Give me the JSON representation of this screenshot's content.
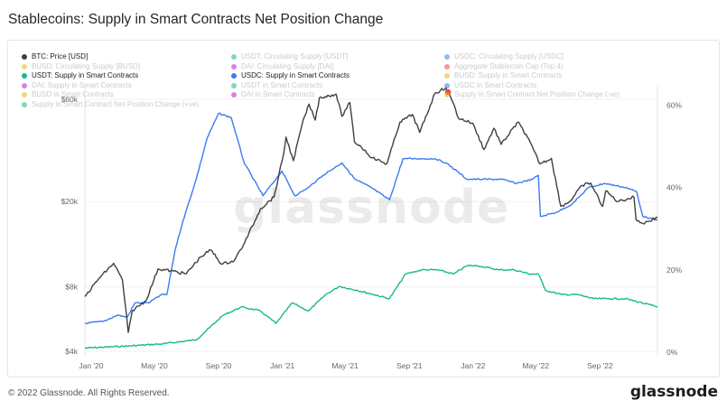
{
  "title": "Stablecoins: Supply in Smart Contracts Net Position Change",
  "footer": "© 2022 Glassnode. All Rights Reserved.",
  "brand": "glassnode",
  "watermark": "glassnode",
  "legend": [
    {
      "label": "BTC: Price [USD]",
      "color": "#404040",
      "active": true
    },
    {
      "label": "USDT: Circulating Supply [USDT]",
      "color": "#16b98b",
      "active": false
    },
    {
      "label": "USDC: Circulating Supply [USDC]",
      "color": "#3d7bf0",
      "active": false
    },
    {
      "label": "BUSD: Circulating Supply [BUSD]",
      "color": "#e3b71a",
      "active": false
    },
    {
      "label": "DAI: Circulating Supply [DAI]",
      "color": "#b61ed0",
      "active": false
    },
    {
      "label": "Aggregate Stablecoin Cap (Top 4)",
      "color": "#f0463c",
      "active": false
    },
    {
      "label": "USDT: Supply in Smart Contracts",
      "color": "#16b98b",
      "active": true
    },
    {
      "label": "USDC: Supply in Smart Contracts",
      "color": "#3d7bf0",
      "active": true
    },
    {
      "label": "BUSD: Supply in Smart Contracts",
      "color": "#e3b71a",
      "active": false
    },
    {
      "label": "DAI: Supply in Smart Contracts",
      "color": "#b61ed0",
      "active": false
    },
    {
      "label": "USDT in Smart Contracts",
      "color": "#16b98b",
      "active": false
    },
    {
      "label": "USDC in Smart Contracts",
      "color": "#3d7bf0",
      "active": false
    },
    {
      "label": "BUSD in Smart Contracts",
      "color": "#e3b71a",
      "active": false
    },
    {
      "label": "DAI in Smart Contracts",
      "color": "#b61ed0",
      "active": false
    },
    {
      "label": "Supply in Smart Contract Net Position Change (-ve)",
      "color": "#e3b71a",
      "active": false
    },
    {
      "label": "Supply in Smart Contract Net Position Change (+ve)",
      "color": "#16b98b",
      "active": false
    }
  ],
  "chart_data": {
    "type": "line",
    "title": "Stablecoins: Supply in Smart Contracts Net Position Change",
    "x_ticks": [
      "Jan '20",
      "May '20",
      "Sep '20",
      "Jan '21",
      "May '21",
      "Sep '21",
      "Jan '22",
      "May '22",
      "Sep '22"
    ],
    "y_left_ticks": [
      "$4k",
      "$8k",
      "$20k",
      "$60k"
    ],
    "y_left_scale": "log",
    "y_right_ticks": [
      "0%",
      "20%",
      "40%",
      "60%"
    ],
    "y_right_range": [
      0,
      68
    ],
    "x_range": [
      "2019-12-20",
      "2022-12-20"
    ],
    "grid": true,
    "series": [
      {
        "name": "BTC: Price [USD]",
        "axis": "left",
        "color": "#404040",
        "x": [
          "2019-12-20",
          "2020-01-15",
          "2020-02-13",
          "2020-03-01",
          "2020-03-12",
          "2020-03-20",
          "2020-04-15",
          "2020-05-08",
          "2020-06-01",
          "2020-07-01",
          "2020-07-28",
          "2020-08-17",
          "2020-09-07",
          "2020-10-01",
          "2020-10-21",
          "2020-11-20",
          "2020-12-16",
          "2021-01-03",
          "2021-01-08",
          "2021-01-22",
          "2021-02-08",
          "2021-02-21",
          "2021-03-05",
          "2021-03-13",
          "2021-04-14",
          "2021-04-25",
          "2021-05-10",
          "2021-05-19",
          "2021-06-01",
          "2021-06-22",
          "2021-07-20",
          "2021-08-14",
          "2021-09-07",
          "2021-09-21",
          "2021-10-20",
          "2021-11-10",
          "2021-11-25",
          "2021-12-04",
          "2021-12-31",
          "2022-01-22",
          "2022-02-10",
          "2022-02-24",
          "2022-03-28",
          "2022-04-15",
          "2022-05-09",
          "2022-05-31",
          "2022-06-18",
          "2022-07-05",
          "2022-07-29",
          "2022-08-14",
          "2022-09-06",
          "2022-09-12",
          "2022-10-05",
          "2022-11-05",
          "2022-11-09",
          "2022-11-22",
          "2022-12-20"
        ],
        "y": [
          7200,
          8700,
          10300,
          8600,
          4900,
          6200,
          6900,
          9700,
          9500,
          9200,
          11000,
          11900,
          10200,
          10600,
          12900,
          18500,
          21000,
          33000,
          40000,
          31000,
          46000,
          57000,
          48000,
          61000,
          63500,
          50000,
          58000,
          38000,
          36000,
          32000,
          30000,
          47000,
          51000,
          42000,
          64000,
          68000,
          57000,
          49000,
          46500,
          35000,
          44000,
          37000,
          47000,
          40000,
          30000,
          31800,
          19000,
          20000,
          23800,
          24400,
          19000,
          22400,
          20000,
          21000,
          16500,
          15800,
          16900
        ]
      },
      {
        "name": "USDC: Supply in Smart Contracts",
        "axis": "right",
        "color": "#3d7bf0",
        "unit": "%",
        "x": [
          "2019-12-20",
          "2020-01-25",
          "2020-02-20",
          "2020-03-10",
          "2020-03-25",
          "2020-04-20",
          "2020-05-15",
          "2020-05-25",
          "2020-06-10",
          "2020-06-25",
          "2020-07-20",
          "2020-08-10",
          "2020-09-01",
          "2020-09-25",
          "2020-10-20",
          "2020-11-25",
          "2020-12-31",
          "2021-01-25",
          "2021-02-20",
          "2021-03-20",
          "2021-04-25",
          "2021-05-20",
          "2021-06-20",
          "2021-07-25",
          "2021-08-20",
          "2021-09-20",
          "2021-10-20",
          "2021-11-10",
          "2021-12-01",
          "2021-12-20",
          "2022-01-20",
          "2022-02-25",
          "2022-03-25",
          "2022-04-25",
          "2022-05-06",
          "2022-05-10",
          "2022-05-12",
          "2022-06-10",
          "2022-07-10",
          "2022-08-10",
          "2022-09-10",
          "2022-10-20",
          "2022-11-10",
          "2022-11-22",
          "2022-12-20"
        ],
        "y": [
          7,
          7.5,
          9,
          8.5,
          12,
          12,
          14,
          14,
          25,
          32,
          42,
          52,
          58,
          57,
          46,
          38,
          44,
          38,
          40,
          43,
          46,
          42,
          40,
          37,
          47,
          47,
          47,
          46,
          44,
          42,
          42,
          42,
          41,
          42,
          43,
          33,
          33,
          34,
          36,
          40,
          41,
          40,
          39,
          33,
          32
        ]
      },
      {
        "name": "USDT: Supply in Smart Contracts",
        "axis": "right",
        "color": "#16b98b",
        "unit": "%",
        "x": [
          "2019-12-20",
          "2020-03-10",
          "2020-05-15",
          "2020-07-20",
          "2020-09-10",
          "2020-10-15",
          "2020-11-20",
          "2020-12-20",
          "2021-01-20",
          "2021-02-20",
          "2021-03-25",
          "2021-04-20",
          "2021-05-25",
          "2021-06-25",
          "2021-07-25",
          "2021-08-25",
          "2021-09-25",
          "2021-10-25",
          "2021-11-25",
          "2021-12-20",
          "2022-01-10",
          "2022-02-20",
          "2022-03-20",
          "2022-04-20",
          "2022-05-06",
          "2022-05-20",
          "2022-06-20",
          "2022-07-20",
          "2022-08-20",
          "2022-09-20",
          "2022-10-20",
          "2022-11-20",
          "2022-12-20"
        ],
        "y": [
          1,
          1.5,
          2,
          3,
          9,
          11,
          10,
          7,
          12,
          10,
          14,
          16,
          15,
          14,
          13,
          19,
          20,
          20,
          19,
          21,
          21,
          20,
          20,
          19,
          19,
          15,
          14,
          14,
          13,
          13,
          13,
          12,
          11
        ]
      }
    ]
  }
}
